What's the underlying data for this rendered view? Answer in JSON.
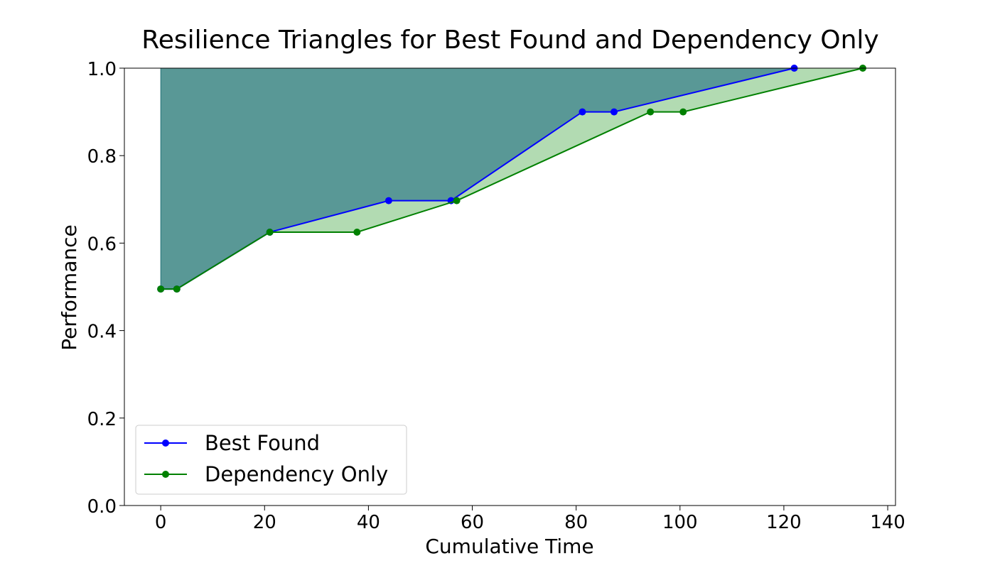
{
  "chart_data": {
    "type": "line",
    "title": "Resilience Triangles for Best Found and Dependency Only",
    "xlabel": "Cumulative Time",
    "ylabel": "Performance",
    "xlim": [
      -7,
      141.5
    ],
    "ylim": [
      0,
      1.0
    ],
    "xticks": [
      0,
      20,
      40,
      60,
      80,
      100,
      120,
      140
    ],
    "yticks": [
      0.0,
      0.2,
      0.4,
      0.6,
      0.8,
      1.0
    ],
    "xtick_labels": [
      "0",
      "20",
      "40",
      "60",
      "80",
      "100",
      "120",
      "140"
    ],
    "ytick_labels": [
      "0.0",
      "0.2",
      "0.4",
      "0.6",
      "0.8",
      "1.0"
    ],
    "grid": false,
    "legend_position": "lower-left",
    "series": [
      {
        "name": "Best Found",
        "color": "#0000ff",
        "fill_color": "#00557a",
        "x": [
          0,
          3.1,
          21,
          43.9,
          55.9,
          81.2,
          87.3,
          122
        ],
        "y": [
          0.495,
          0.495,
          0.625,
          0.697,
          0.697,
          0.9,
          0.9,
          1.0
        ]
      },
      {
        "name": "Dependency Only",
        "color": "#008000",
        "fill_color": "#66b866",
        "x": [
          0,
          3.1,
          21,
          37.8,
          57,
          94.3,
          100.6,
          135.2
        ],
        "y": [
          0.495,
          0.495,
          0.625,
          0.625,
          0.697,
          0.9,
          0.9,
          1.0
        ]
      }
    ]
  }
}
